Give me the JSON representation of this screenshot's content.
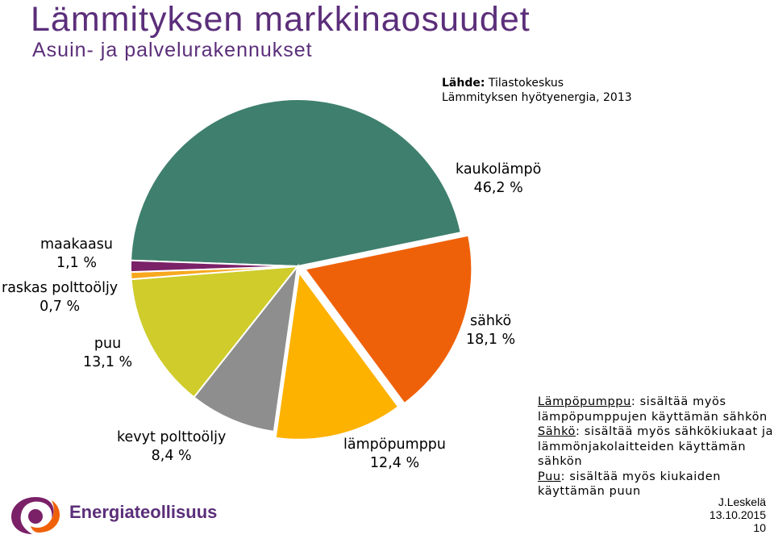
{
  "title": "Lämmityksen markkinaosuudet",
  "subtitle": "Asuin- ja palvelurakennukset",
  "source": {
    "label": "Lähde:",
    "name": "Tilastokeskus",
    "detail": "Lämmityksen hyötyenergia, 2013"
  },
  "chart_data": {
    "type": "pie",
    "slices": [
      {
        "name": "kaukolämpö",
        "value": 46.2,
        "value_label": "46,2 %",
        "color": "#3f7f6e"
      },
      {
        "name": "sähkö",
        "value": 18.1,
        "value_label": "18,1 %",
        "color": "#ef6109"
      },
      {
        "name": "lämpöpumppu",
        "value": 12.4,
        "value_label": "12,4 %",
        "color": "#fdb200"
      },
      {
        "name": "kevyt polttoöljy",
        "value": 8.4,
        "value_label": "8,4 %",
        "color": "#8e8e8e"
      },
      {
        "name": "puu",
        "value": 13.1,
        "value_label": "13,1 %",
        "color": "#cfcc2c"
      },
      {
        "name": "raskas polttoöljy",
        "value": 0.7,
        "value_label": "0,7 %",
        "color": "#f7a81e"
      },
      {
        "name": "maakaasu",
        "value": 1.1,
        "value_label": "1,1 %",
        "color": "#7b2168"
      }
    ]
  },
  "notes": [
    {
      "key": "Lämpöpumppu",
      "text_lines": [
        ": sisältää myös",
        "lämpöpumppujen käyttämän sähkön"
      ]
    },
    {
      "key": "Sähkö",
      "text_lines": [
        ": sisältää myös sähkökiukaat ja",
        "lämmönjakolaitteiden käyttämän",
        "sähkön"
      ]
    },
    {
      "key": "Puu",
      "text_lines": [
        ": sisältää myös kiukaiden",
        "käyttämän puun"
      ]
    }
  ],
  "brand": "Energiateollisuus",
  "footer": {
    "author": "J.Leskelä",
    "date": "13.10.2015",
    "page": "10"
  },
  "colors": {
    "title": "#5b2e7a",
    "logo_purple": "#7b2168",
    "logo_orange": "#ef6109"
  }
}
